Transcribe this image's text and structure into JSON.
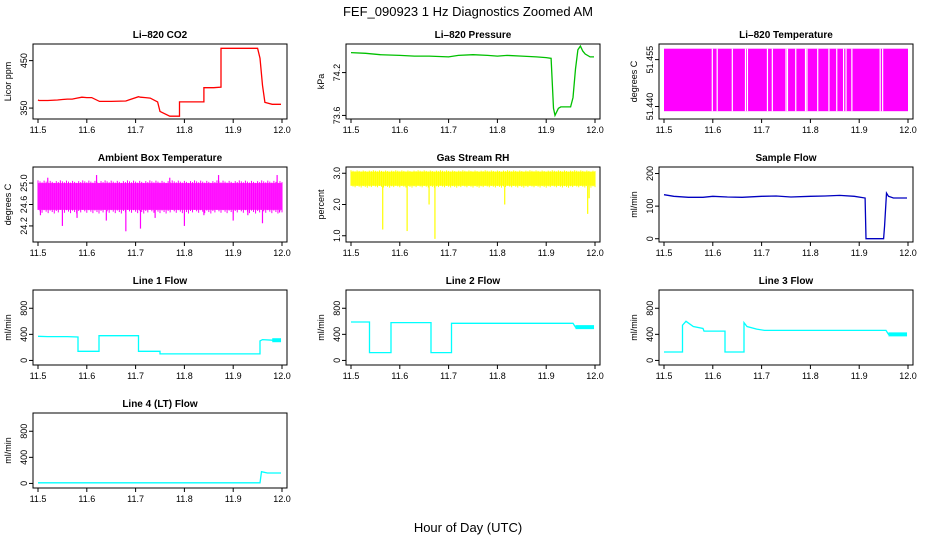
{
  "figure": {
    "title": "FEF_090923  1 Hz Diagnostics Zoomed AM",
    "xlabel": "Hour of Day (UTC)"
  },
  "chart_data": [
    {
      "type": "line",
      "title": "Li–820 CO2",
      "ylabel": "Licor ppm",
      "color": "#ff0000",
      "xlim": [
        11.5,
        12.0
      ],
      "ylim": [
        327,
        485
      ],
      "xticks": [
        "11.5",
        "11.6",
        "11.7",
        "11.8",
        "11.9",
        "12.0"
      ],
      "yticks": [
        "350",
        "450"
      ],
      "x": [
        11.5,
        11.502,
        11.52,
        11.52,
        11.54,
        11.55,
        11.56,
        11.57,
        11.58,
        11.59,
        11.6,
        11.61,
        11.626,
        11.626,
        11.65,
        11.68,
        11.706,
        11.706,
        11.71,
        11.72,
        11.73,
        11.745,
        11.75,
        11.75,
        11.77,
        11.79,
        11.79,
        11.8,
        11.82,
        11.84,
        11.84,
        11.86,
        11.875,
        11.875,
        11.9,
        11.93,
        11.95,
        11.955,
        11.96,
        11.965,
        11.98,
        11.99,
        11.998
      ],
      "y": [
        367,
        366,
        366,
        366,
        367,
        368,
        369,
        369,
        371,
        373,
        372,
        372,
        364,
        364,
        364,
        365,
        374,
        374,
        373,
        372,
        371,
        363,
        343,
        343,
        333,
        333,
        363,
        363,
        363,
        363,
        393,
        393,
        394,
        476,
        476,
        476,
        476,
        455,
        398,
        362,
        358,
        358,
        358
      ]
    },
    {
      "type": "line",
      "title": "Li–820 Pressure",
      "ylabel": "kPa",
      "color": "#00c000",
      "xlim": [
        11.5,
        12.0
      ],
      "ylim": [
        73.55,
        74.6
      ],
      "xticks": [
        "11.5",
        "11.6",
        "11.7",
        "11.8",
        "11.9",
        "12.0"
      ],
      "yticks": [
        "73.6",
        "74.2"
      ],
      "x": [
        11.5,
        11.53,
        11.56,
        11.6,
        11.63,
        11.66,
        11.7,
        11.72,
        11.75,
        11.78,
        11.8,
        11.82,
        11.85,
        11.88,
        11.9,
        11.91,
        11.915,
        11.918,
        11.925,
        11.93,
        11.95,
        11.955,
        11.96,
        11.965,
        11.97,
        11.975,
        11.98,
        11.99,
        11.998
      ],
      "y": [
        74.48,
        74.47,
        74.45,
        74.44,
        74.43,
        74.43,
        74.42,
        74.44,
        74.45,
        74.44,
        74.43,
        74.44,
        74.43,
        74.42,
        74.41,
        74.4,
        73.7,
        73.6,
        73.7,
        73.72,
        73.72,
        73.85,
        74.25,
        74.52,
        74.57,
        74.5,
        74.46,
        74.42,
        74.42
      ]
    },
    {
      "type": "line",
      "title": "Li–820 Temperature",
      "ylabel": "degrees C",
      "color": "#ff00ff",
      "xlim": [
        11.5,
        12.0
      ],
      "ylim": [
        51.436,
        51.46
      ],
      "xticks": [
        "11.5",
        "11.6",
        "11.7",
        "11.8",
        "11.9",
        "12.0"
      ],
      "yticks": [
        "51.440",
        "51.455"
      ],
      "fill_range": [
        51.4385,
        51.4585
      ],
      "gaps_x": [
        11.599,
        11.609,
        11.64,
        11.667,
        11.671,
        11.712,
        11.722,
        11.75,
        11.753,
        11.77,
        11.79,
        11.793,
        11.815,
        11.838,
        11.854,
        11.868,
        11.873,
        11.885,
        11.943,
        11.948
      ]
    },
    {
      "type": "line",
      "title": "Ambient Box Temperature",
      "ylabel": "degrees C",
      "color": "#ff00ff",
      "xlim": [
        11.5,
        12.0
      ],
      "ylim": [
        23.9,
        25.3
      ],
      "xticks": [
        "11.5",
        "11.6",
        "11.7",
        "11.8",
        "11.9",
        "12.0"
      ],
      "yticks": [
        "24.2",
        "24.6",
        "25.0"
      ],
      "band": [
        24.5,
        25.0
      ],
      "spikes": [
        [
          11.505,
          24.4
        ],
        [
          11.52,
          25.1
        ],
        [
          11.55,
          24.2
        ],
        [
          11.58,
          24.35
        ],
        [
          11.62,
          25.15
        ],
        [
          11.64,
          24.3
        ],
        [
          11.68,
          24.1
        ],
        [
          11.71,
          24.15
        ],
        [
          11.74,
          24.35
        ],
        [
          11.77,
          25.1
        ],
        [
          11.8,
          24.2
        ],
        [
          11.84,
          24.4
        ],
        [
          11.87,
          25.15
        ],
        [
          11.9,
          24.3
        ],
        [
          11.93,
          24.4
        ],
        [
          11.96,
          24.25
        ],
        [
          11.99,
          25.15
        ],
        [
          11.995,
          24.45
        ]
      ]
    },
    {
      "type": "line",
      "title": "Gas Stream RH",
      "ylabel": "percent",
      "color": "#ffff00",
      "xlim": [
        11.5,
        12.0
      ],
      "ylim": [
        0.8,
        3.2
      ],
      "xticks": [
        "11.5",
        "11.6",
        "11.7",
        "11.8",
        "11.9",
        "12.0"
      ],
      "yticks": [
        "1.0",
        "2.0",
        "3.0"
      ],
      "band": [
        2.6,
        3.05
      ],
      "spikes": [
        [
          11.565,
          1.2
        ],
        [
          11.615,
          1.15
        ],
        [
          11.672,
          0.9
        ],
        [
          11.66,
          2.0
        ],
        [
          11.815,
          2.0
        ],
        [
          11.985,
          1.7
        ],
        [
          11.988,
          2.2
        ]
      ]
    },
    {
      "type": "line",
      "title": "Sample Flow",
      "ylabel": "ml/min",
      "color": "#0000c0",
      "xlim": [
        11.5,
        12.0
      ],
      "ylim": [
        -10,
        220
      ],
      "xticks": [
        "11.5",
        "11.6",
        "11.7",
        "11.8",
        "11.9",
        "12.0"
      ],
      "yticks": [
        "0",
        "100",
        "200"
      ],
      "x": [
        11.5,
        11.52,
        11.55,
        11.58,
        11.6,
        11.63,
        11.66,
        11.7,
        11.73,
        11.76,
        11.8,
        11.83,
        11.86,
        11.89,
        11.912,
        11.914,
        11.93,
        11.95,
        11.952,
        11.956,
        11.96,
        11.97,
        11.98,
        11.998
      ],
      "y": [
        135,
        130,
        127,
        127,
        130,
        128,
        127,
        130,
        131,
        128,
        130,
        131,
        133,
        130,
        125,
        0,
        0,
        0,
        40,
        140,
        130,
        125,
        125,
        125
      ]
    },
    {
      "type": "line",
      "title": "Line 1 Flow",
      "ylabel": "ml/min",
      "color": "#00ffff",
      "xlim": [
        11.5,
        12.0
      ],
      "ylim": [
        -70,
        1080
      ],
      "xticks": [
        "11.5",
        "11.6",
        "11.7",
        "11.8",
        "11.9",
        "12.0"
      ],
      "yticks": [
        "0",
        "400",
        "800"
      ],
      "x": [
        11.5,
        11.52,
        11.56,
        11.582,
        11.582,
        11.625,
        11.625,
        11.66,
        11.706,
        11.706,
        11.75,
        11.75,
        11.8,
        11.85,
        11.9,
        11.955,
        11.955,
        11.96,
        11.98,
        11.998
      ],
      "y": [
        370,
        365,
        365,
        360,
        140,
        140,
        380,
        380,
        380,
        140,
        140,
        100,
        100,
        100,
        100,
        100,
        300,
        320,
        310,
        310
      ]
    },
    {
      "type": "line",
      "title": "Line 2 Flow",
      "ylabel": "ml/min",
      "color": "#00ffff",
      "xlim": [
        11.5,
        12.0
      ],
      "ylim": [
        -70,
        1080
      ],
      "xticks": [
        "11.5",
        "11.6",
        "11.7",
        "11.8",
        "11.9",
        "12.0"
      ],
      "yticks": [
        "0",
        "400",
        "800"
      ],
      "x": [
        11.5,
        11.538,
        11.538,
        11.582,
        11.582,
        11.664,
        11.664,
        11.706,
        11.706,
        11.75,
        11.8,
        11.85,
        11.9,
        11.955,
        11.96,
        11.998
      ],
      "y": [
        590,
        590,
        120,
        120,
        580,
        580,
        120,
        120,
        570,
        570,
        570,
        570,
        570,
        570,
        510,
        510
      ]
    },
    {
      "type": "line",
      "title": "Line 3 Flow",
      "ylabel": "ml/min",
      "color": "#00ffff",
      "xlim": [
        11.5,
        12.0
      ],
      "ylim": [
        -70,
        1080
      ],
      "xticks": [
        "11.5",
        "11.6",
        "11.7",
        "11.8",
        "11.9",
        "12.0"
      ],
      "yticks": [
        "0",
        "400",
        "800"
      ],
      "x": [
        11.5,
        11.538,
        11.538,
        11.545,
        11.56,
        11.58,
        11.582,
        11.625,
        11.625,
        11.664,
        11.664,
        11.67,
        11.69,
        11.706,
        11.75,
        11.8,
        11.85,
        11.9,
        11.955,
        11.96,
        11.998
      ],
      "y": [
        130,
        130,
        540,
        600,
        520,
        490,
        450,
        450,
        130,
        130,
        580,
        520,
        480,
        460,
        460,
        460,
        460,
        460,
        460,
        400,
        400
      ]
    },
    {
      "type": "line",
      "title": "Line 4 (LT) Flow",
      "ylabel": "ml/min",
      "color": "#00ffff",
      "xlim": [
        11.5,
        12.0
      ],
      "ylim": [
        -70,
        1080
      ],
      "xticks": [
        "11.5",
        "11.6",
        "11.7",
        "11.8",
        "11.9",
        "12.0"
      ],
      "yticks": [
        "0",
        "400",
        "800"
      ],
      "x": [
        11.5,
        11.6,
        11.7,
        11.8,
        11.9,
        11.955,
        11.958,
        11.97,
        11.998
      ],
      "y": [
        10,
        10,
        10,
        10,
        10,
        10,
        180,
        160,
        160
      ]
    }
  ]
}
